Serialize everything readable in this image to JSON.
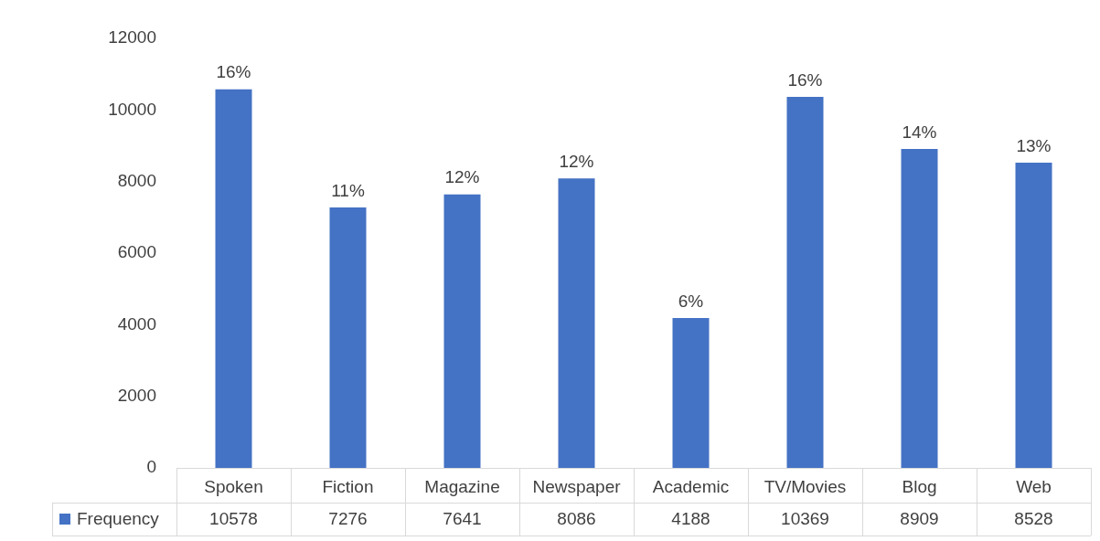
{
  "chart_data": {
    "type": "bar",
    "categories": [
      "Spoken",
      "Fiction",
      "Magazine",
      "Newspaper",
      "Academic",
      "TV/Movies",
      "Blog",
      "Web"
    ],
    "series": [
      {
        "name": "Frequency",
        "color": "#4472c4",
        "values": [
          10578,
          7276,
          7641,
          8086,
          4188,
          10369,
          8909,
          8528
        ],
        "value_labels": [
          "10578",
          "7276",
          "7641",
          "8086",
          "4188",
          "10369",
          "8909",
          "8528"
        ]
      }
    ],
    "annotations": [
      {
        "text": "16%",
        "x": "Spoken",
        "y": 10578
      },
      {
        "text": "11%",
        "x": "Fiction",
        "y": 7276
      },
      {
        "text": "12%",
        "x": "Magazine",
        "y": 7641
      },
      {
        "text": "12%",
        "x": "Newspaper",
        "y": 8086
      },
      {
        "text": "6%",
        "x": "Academic",
        "y": 4188
      },
      {
        "text": "16%",
        "x": "TV/Movies",
        "y": 10369
      },
      {
        "text": "14%",
        "x": "Blog",
        "y": 8909
      },
      {
        "text": "13%",
        "x": "Web",
        "y": 8528
      }
    ],
    "ylim": [
      0,
      12000
    ],
    "yticks": [
      0,
      2000,
      4000,
      6000,
      8000,
      10000,
      12000
    ],
    "legend": "bottom",
    "grid": false
  }
}
